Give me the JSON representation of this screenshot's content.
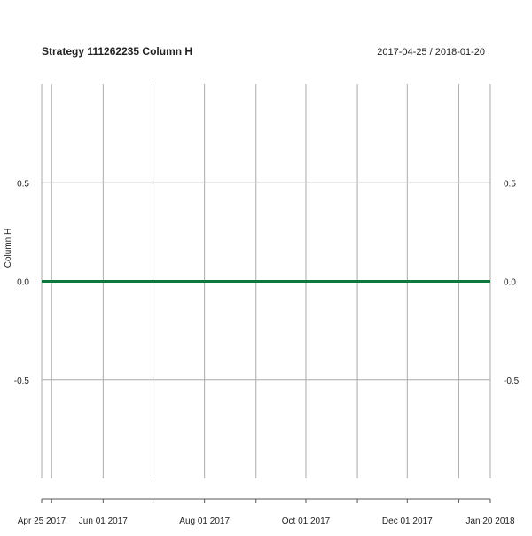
{
  "chart_data": {
    "type": "line",
    "title": "Strategy 111262235 Column H",
    "date_range": "2017-04-25 / 2018-01-20",
    "ylabel": "Column H",
    "xlabel": "",
    "x_start": "2017-04-25",
    "x_end": "2018-01-20",
    "ylim": [
      -1,
      1
    ],
    "y_ticks": [
      -0.5,
      0.0,
      0.5
    ],
    "y_tick_labels": [
      "-0.5",
      "0.0",
      "0.5"
    ],
    "x_ticks": [
      {
        "date": "2017-04-25",
        "label": "Apr 25 2017"
      },
      {
        "date": "2017-05-01",
        "label": ""
      },
      {
        "date": "2017-06-01",
        "label": "Jun 01 2017"
      },
      {
        "date": "2017-07-01",
        "label": ""
      },
      {
        "date": "2017-08-01",
        "label": "Aug 01 2017"
      },
      {
        "date": "2017-09-01",
        "label": ""
      },
      {
        "date": "2017-10-01",
        "label": "Oct 01 2017"
      },
      {
        "date": "2017-11-01",
        "label": ""
      },
      {
        "date": "2017-12-01",
        "label": "Dec 01 2017"
      },
      {
        "date": "2018-01-01",
        "label": ""
      },
      {
        "date": "2018-01-20",
        "label": "Jan 20 2018"
      }
    ],
    "grid": true,
    "legend": "none",
    "colors": {
      "series": "#0b7a3a",
      "grid": "#aaaaaa",
      "text": "#222222"
    },
    "series": [
      {
        "x": [
          "2017-04-25",
          "2018-01-20"
        ],
        "values": [
          0.0,
          0.0
        ]
      }
    ]
  }
}
